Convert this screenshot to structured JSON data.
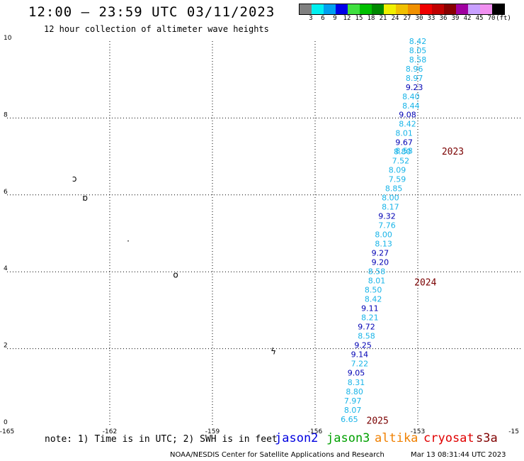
{
  "title": "12:00 – 23:59 UTC 03/11/2023",
  "subtitle": "12 hour collection of altimeter wave heights",
  "scale": {
    "colors": [
      "#808080",
      "#00f0f0",
      "#00a0f0",
      "#0000e8",
      "#40e040",
      "#00c000",
      "#008800",
      "#f0f000",
      "#f0c000",
      "#f09000",
      "#f00000",
      "#c00000",
      "#880000",
      "#a000a0",
      "#c8a0ff",
      "#f090f0",
      "#000000"
    ],
    "labels": [
      "3",
      "6",
      "9",
      "12",
      "15",
      "18",
      "21",
      "24",
      "27",
      "30",
      "33",
      "36",
      "39",
      "42",
      "45",
      "70",
      "(ft)"
    ]
  },
  "map": {
    "lon_range": [
      -165,
      -150
    ],
    "lat_range": [
      0,
      10
    ],
    "x_ticks": [
      "-165",
      "-162",
      "-159",
      "-156",
      "-153",
      "-15"
    ],
    "y_ticks": [
      "0",
      "2",
      "4",
      "6",
      "8",
      "10"
    ]
  },
  "wave_heights": [
    {
      "lon": -153.0,
      "lat": 10.0,
      "value": "8.42",
      "color": "#18b4e8"
    },
    {
      "lon": -153.0,
      "lat": 9.76,
      "value": "8.05",
      "color": "#18b4e8"
    },
    {
      "lon": -153.0,
      "lat": 9.52,
      "value": "8.58",
      "color": "#18b4e8"
    },
    {
      "lon": -153.1,
      "lat": 9.28,
      "value": "8.96",
      "color": "#18b4e8"
    },
    {
      "lon": -153.1,
      "lat": 9.04,
      "value": "8.97",
      "color": "#18b4e8"
    },
    {
      "lon": -153.1,
      "lat": 8.8,
      "value": "9.23",
      "color": "#0000b4"
    },
    {
      "lon": -153.2,
      "lat": 8.56,
      "value": "8.40",
      "color": "#18b4e8"
    },
    {
      "lon": -153.2,
      "lat": 8.32,
      "value": "8.44",
      "color": "#18b4e8"
    },
    {
      "lon": -153.3,
      "lat": 8.09,
      "value": "9.08",
      "color": "#0000b4"
    },
    {
      "lon": -153.3,
      "lat": 7.85,
      "value": "8.42",
      "color": "#18b4e8"
    },
    {
      "lon": -153.4,
      "lat": 7.61,
      "value": "8.01",
      "color": "#18b4e8"
    },
    {
      "lon": -153.4,
      "lat": 7.37,
      "value": "9.67",
      "color": "#0000b4"
    },
    {
      "lon": -153.4,
      "lat": 7.15,
      "value": "8.58",
      "color": "#18b4e8"
    },
    {
      "lon": -153.45,
      "lat": 7.13,
      "value": "8.80",
      "color": "#18b4e8"
    },
    {
      "lon": -153.5,
      "lat": 6.89,
      "value": "7.52",
      "color": "#18b4e8"
    },
    {
      "lon": -153.6,
      "lat": 6.65,
      "value": "8.09",
      "color": "#18b4e8"
    },
    {
      "lon": -153.6,
      "lat": 6.41,
      "value": "7.59",
      "color": "#18b4e8"
    },
    {
      "lon": -153.7,
      "lat": 6.17,
      "value": "8.85",
      "color": "#18b4e8"
    },
    {
      "lon": -153.8,
      "lat": 5.93,
      "value": "8.00",
      "color": "#18b4e8"
    },
    {
      "lon": -153.8,
      "lat": 5.69,
      "value": "8.17",
      "color": "#18b4e8"
    },
    {
      "lon": -153.9,
      "lat": 5.45,
      "value": "9.32",
      "color": "#0000b4"
    },
    {
      "lon": -153.9,
      "lat": 5.21,
      "value": "7.76",
      "color": "#18b4e8"
    },
    {
      "lon": -154.0,
      "lat": 4.97,
      "value": "8.00",
      "color": "#18b4e8"
    },
    {
      "lon": -154.0,
      "lat": 4.73,
      "value": "8.13",
      "color": "#18b4e8"
    },
    {
      "lon": -154.1,
      "lat": 4.49,
      "value": "9.27",
      "color": "#0000b4"
    },
    {
      "lon": -154.1,
      "lat": 4.25,
      "value": "9.20",
      "color": "#0000b4"
    },
    {
      "lon": -154.2,
      "lat": 4.01,
      "value": "8.58",
      "color": "#18b4e8"
    },
    {
      "lon": -154.2,
      "lat": 3.77,
      "value": "8.01",
      "color": "#18b4e8"
    },
    {
      "lon": -154.3,
      "lat": 3.53,
      "value": "8.50",
      "color": "#18b4e8"
    },
    {
      "lon": -154.3,
      "lat": 3.29,
      "value": "8.42",
      "color": "#18b4e8"
    },
    {
      "lon": -154.4,
      "lat": 3.05,
      "value": "9.11",
      "color": "#0000b4"
    },
    {
      "lon": -154.4,
      "lat": 2.81,
      "value": "8.21",
      "color": "#18b4e8"
    },
    {
      "lon": -154.5,
      "lat": 2.57,
      "value": "9.72",
      "color": "#0000b4"
    },
    {
      "lon": -154.5,
      "lat": 2.33,
      "value": "8.58",
      "color": "#18b4e8"
    },
    {
      "lon": -154.6,
      "lat": 2.09,
      "value": "9.25",
      "color": "#0000b4"
    },
    {
      "lon": -154.7,
      "lat": 1.85,
      "value": "9.14",
      "color": "#0000b4"
    },
    {
      "lon": -154.7,
      "lat": 1.61,
      "value": "7.22",
      "color": "#18b4e8"
    },
    {
      "lon": -154.8,
      "lat": 1.37,
      "value": "9.05",
      "color": "#0000b4"
    },
    {
      "lon": -154.8,
      "lat": 1.13,
      "value": "8.31",
      "color": "#18b4e8"
    },
    {
      "lon": -154.85,
      "lat": 0.89,
      "value": "8.80",
      "color": "#18b4e8"
    },
    {
      "lon": -154.9,
      "lat": 0.65,
      "value": "7.97",
      "color": "#18b4e8"
    },
    {
      "lon": -154.9,
      "lat": 0.41,
      "value": "8.07",
      "color": "#18b4e8"
    },
    {
      "lon": -155.0,
      "lat": 0.17,
      "value": "6.65",
      "color": "#18b4e8"
    }
  ],
  "year_labels": [
    {
      "lon": -152.3,
      "lat": 7.14,
      "text": "2023"
    },
    {
      "lon": -153.1,
      "lat": 3.74,
      "text": "2024"
    },
    {
      "lon": -154.5,
      "lat": 0.14,
      "text": "2025"
    }
  ],
  "islands": [
    {
      "lon": -163.1,
      "lat": 6.35,
      "glyph": "ↄ"
    },
    {
      "lon": -162.8,
      "lat": 5.85,
      "glyph": "ɒ"
    },
    {
      "lon": -161.5,
      "lat": 4.72,
      "glyph": "·"
    },
    {
      "lon": -160.15,
      "lat": 3.85,
      "glyph": "o"
    },
    {
      "lon": -157.3,
      "lat": 1.85,
      "glyph": "ϟ"
    }
  ],
  "note": "note:  1) Time is in UTC; 2) SWH is in feet",
  "satellites": [
    {
      "name": "jason2",
      "color": "#0000e0"
    },
    {
      "name": "jason3",
      "color": "#00a000"
    },
    {
      "name": "altika",
      "color": "#f08000"
    },
    {
      "name": "cryosat",
      "color": "#e00000"
    },
    {
      "name": "s3a",
      "color": "#800000"
    }
  ],
  "credit": "NOAA/NESDIS Center for Satellite Applications and Research",
  "generated": "Mar 13 08:31:44 UTC 2023"
}
